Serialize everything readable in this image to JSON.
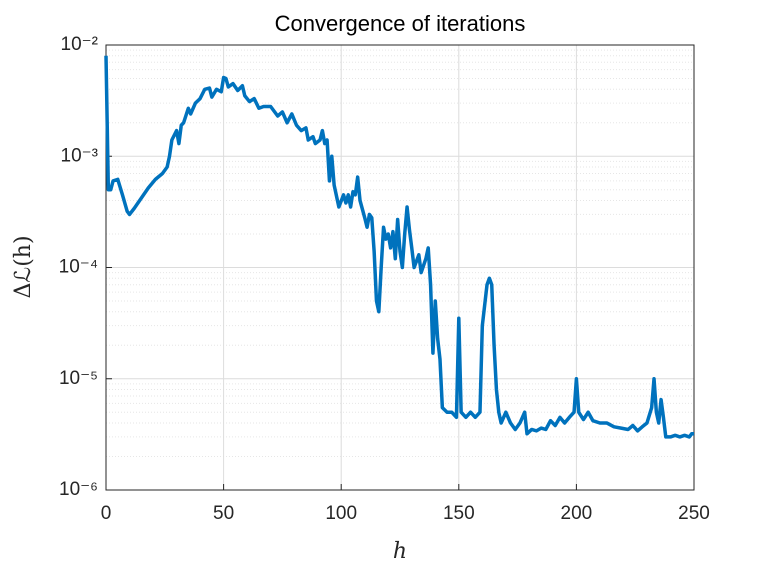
{
  "chart_data": {
    "type": "line",
    "title": "Convergence of iterations",
    "xlabel": "h",
    "ylabel": "Δℒ(h)",
    "log_y": true,
    "grid": true,
    "minor_grid": true,
    "color": "#0072BD",
    "xlim": [
      0,
      250
    ],
    "xticks": [
      0,
      50,
      100,
      150,
      200,
      250
    ],
    "ylim": [
      1e-06,
      0.01
    ],
    "yticks": [
      {
        "value": 1e-06,
        "label": "10⁻⁶"
      },
      {
        "value": 1e-05,
        "label": "10⁻⁵"
      },
      {
        "value": 0.0001,
        "label": "10⁻⁴"
      },
      {
        "value": 0.001,
        "label": "10⁻³"
      },
      {
        "value": 0.01,
        "label": "10⁻²"
      }
    ],
    "x": [
      0,
      1,
      2,
      3,
      5,
      7,
      9,
      10,
      12,
      15,
      18,
      21,
      24,
      26,
      27,
      28,
      30,
      31,
      32,
      33,
      35,
      36,
      38,
      40,
      42,
      44,
      45,
      47,
      49,
      50,
      51,
      52,
      54,
      56,
      58,
      59,
      61,
      63,
      65,
      67,
      70,
      73,
      75,
      77,
      79,
      81,
      83,
      85,
      86,
      88,
      89,
      91,
      92,
      93,
      94,
      95,
      96,
      97,
      99,
      101,
      102,
      103,
      104,
      105,
      106,
      107,
      108,
      110,
      111,
      112,
      113,
      114,
      115,
      116,
      117,
      118,
      119,
      120,
      121,
      122,
      123,
      124,
      125,
      126,
      127,
      128,
      129,
      130,
      131,
      133,
      134,
      136,
      137,
      138,
      139,
      140,
      141,
      142,
      143,
      145,
      147,
      149,
      150,
      151,
      153,
      155,
      157,
      159,
      160,
      162,
      163,
      164,
      165,
      166,
      167,
      168,
      170,
      172,
      174,
      176,
      178,
      179,
      181,
      183,
      185,
      187,
      189,
      191,
      193,
      195,
      197,
      199,
      200,
      201,
      203,
      205,
      207,
      210,
      213,
      216,
      219,
      222,
      224,
      226,
      228,
      230,
      232,
      233,
      234,
      235,
      236,
      237,
      238,
      240,
      242,
      244,
      246,
      248,
      249,
      250
    ],
    "values": [
      0.008,
      0.0005,
      0.0005,
      0.0006,
      0.00062,
      0.00045,
      0.00032,
      0.0003,
      0.00034,
      0.00042,
      0.00052,
      0.00062,
      0.0007,
      0.0008,
      0.001,
      0.0014,
      0.0017,
      0.0013,
      0.0019,
      0.002,
      0.0027,
      0.0024,
      0.003,
      0.0033,
      0.004,
      0.0041,
      0.0034,
      0.004,
      0.0038,
      0.0051,
      0.005,
      0.0042,
      0.0045,
      0.0039,
      0.0043,
      0.0035,
      0.0031,
      0.0033,
      0.0027,
      0.0028,
      0.0028,
      0.0023,
      0.0025,
      0.002,
      0.0024,
      0.0019,
      0.0017,
      0.0018,
      0.0014,
      0.0015,
      0.0013,
      0.0014,
      0.0017,
      0.0013,
      0.0014,
      0.0006,
      0.001,
      0.00055,
      0.00035,
      0.00045,
      0.00038,
      0.00045,
      0.00035,
      0.00048,
      0.00045,
      0.00065,
      0.0004,
      0.00028,
      0.00023,
      0.0003,
      0.00028,
      0.00014,
      5e-05,
      4e-05,
      0.0001,
      0.00023,
      0.00018,
      0.0002,
      0.00015,
      0.00021,
      0.00012,
      0.00027,
      0.00014,
      0.0001,
      0.0002,
      0.00035,
      0.00022,
      0.00015,
      0.0001,
      0.00013,
      9e-05,
      0.00012,
      0.00015,
      7e-05,
      1.7e-05,
      5e-05,
      2.3e-05,
      1.5e-05,
      5.5e-06,
      5e-06,
      5e-06,
      4.5e-06,
      3.5e-05,
      5e-06,
      4.5e-06,
      5e-06,
      4.5e-06,
      5e-06,
      3e-05,
      7e-05,
      8e-05,
      7e-05,
      2e-05,
      8e-06,
      5e-06,
      4e-06,
      5e-06,
      4e-06,
      3.5e-06,
      4e-06,
      5e-06,
      3.2e-06,
      3.5e-06,
      3.4e-06,
      3.6e-06,
      3.5e-06,
      4.2e-06,
      3.8e-06,
      4.5e-06,
      4e-06,
      4.5e-06,
      5e-06,
      1e-05,
      5e-06,
      4.3e-06,
      5e-06,
      4.2e-06,
      4e-06,
      4e-06,
      3.7e-06,
      3.6e-06,
      3.5e-06,
      3.8e-06,
      3.4e-06,
      3.7e-06,
      4e-06,
      5.5e-06,
      1e-05,
      5e-06,
      4e-06,
      6.5e-06,
      4.5e-06,
      3e-06,
      3e-06,
      3.1e-06,
      3e-06,
      3.1e-06,
      3e-06,
      3.2e-06,
      3.2e-06
    ]
  }
}
